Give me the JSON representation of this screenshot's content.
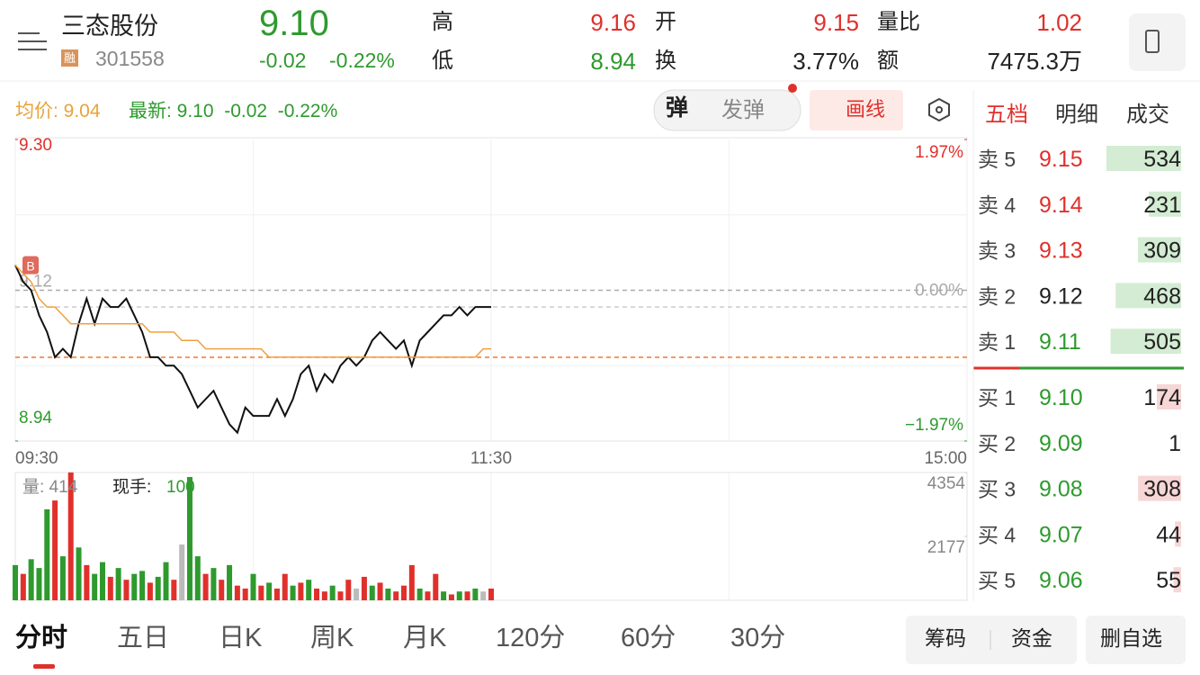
{
  "header": {
    "name": "三态股份",
    "margin_tag": "融",
    "code": "301558",
    "price": "9.10",
    "change": "-0.02",
    "change_pct": "-0.22%",
    "high_label": "高",
    "high": "9.16",
    "low_label": "低",
    "low": "8.94",
    "open_label": "开",
    "open": "9.15",
    "turnover_label": "换",
    "turnover": "3.77%",
    "ratio_label": "量比",
    "ratio": "1.02",
    "amount_label": "额",
    "amount": "7475.3万"
  },
  "legend": {
    "avg": "均价: 9.04",
    "latest": "最新: 9.10  -0.02  -0.22%"
  },
  "toolbar": {
    "danmu": "弹",
    "send_danmu": "发弹",
    "draw_line": "画线"
  },
  "chart_data": [
    {
      "type": "line",
      "annotation": "B",
      "x": [
        0,
        2,
        4,
        6,
        8,
        10,
        12,
        14,
        16,
        18,
        20,
        22,
        24,
        26,
        28,
        30,
        32,
        34,
        36,
        38,
        40,
        42,
        44,
        46,
        48,
        50,
        52,
        54,
        56,
        58,
        60,
        62,
        64,
        66,
        68,
        70,
        72,
        74,
        76,
        78,
        80,
        82,
        84,
        86,
        88,
        90,
        92,
        94,
        96,
        98,
        100,
        102,
        104,
        106,
        108,
        110,
        112,
        114,
        116,
        118,
        120
      ],
      "series": [
        {
          "name": "最新",
          "color": "#111111",
          "values": [
            9.15,
            9.13,
            9.12,
            9.09,
            9.07,
            9.04,
            9.05,
            9.04,
            9.08,
            9.11,
            9.08,
            9.11,
            9.1,
            9.1,
            9.11,
            9.09,
            9.07,
            9.04,
            9.04,
            9.03,
            9.03,
            9.02,
            9.0,
            8.98,
            8.99,
            9.0,
            8.98,
            8.96,
            8.95,
            8.98,
            8.97,
            8.97,
            8.97,
            8.99,
            8.97,
            8.99,
            9.02,
            9.03,
            9.0,
            9.02,
            9.01,
            9.03,
            9.04,
            9.03,
            9.04,
            9.06,
            9.07,
            9.06,
            9.05,
            9.06,
            9.03,
            9.06,
            9.07,
            9.08,
            9.09,
            9.09,
            9.1,
            9.09,
            9.1,
            9.1,
            9.1
          ]
        },
        {
          "name": "均价",
          "color": "#f0a040",
          "values": [
            9.15,
            9.14,
            9.13,
            9.11,
            9.1,
            9.1,
            9.09,
            9.08,
            9.08,
            9.08,
            9.08,
            9.08,
            9.08,
            9.08,
            9.08,
            9.08,
            9.08,
            9.07,
            9.07,
            9.07,
            9.07,
            9.06,
            9.06,
            9.06,
            9.05,
            9.05,
            9.05,
            9.05,
            9.05,
            9.05,
            9.05,
            9.05,
            9.04,
            9.04,
            9.04,
            9.04,
            9.04,
            9.04,
            9.04,
            9.04,
            9.04,
            9.04,
            9.04,
            9.04,
            9.04,
            9.04,
            9.04,
            9.04,
            9.04,
            9.04,
            9.04,
            9.04,
            9.04,
            9.04,
            9.04,
            9.04,
            9.04,
            9.04,
            9.04,
            9.05,
            9.05
          ]
        }
      ],
      "reference_lines": [
        {
          "value": 9.12,
          "color": "#aaaaaa"
        },
        {
          "value": 9.1,
          "color": "#cccccc"
        },
        {
          "value": 9.04,
          "color": "#f07a2a"
        }
      ],
      "xlim": [
        0,
        240
      ],
      "xticks": [
        {
          "value": 0,
          "label": "09:30"
        },
        {
          "value": 120,
          "label": "11:30"
        },
        {
          "value": 240,
          "label": "15:00"
        }
      ],
      "ylim": [
        8.94,
        9.3
      ],
      "yticks": [
        {
          "value": 9.3,
          "label": "9.30"
        },
        9.12,
        8.94
      ],
      "ytick_colors": [
        "#e0302c",
        "#aaaaaa",
        "#2e9a2e"
      ],
      "y2lim": [
        -1.97,
        1.97
      ],
      "y2ticks": [
        {
          "value": 1.97,
          "label": "1.97%"
        },
        {
          "value": 0,
          "label": "0.00%"
        },
        {
          "value": -1.97,
          "label": "−1.97%"
        }
      ],
      "y2tick_colors": [
        "#e0302c",
        "#aaaaaa",
        "#2e9a2e"
      ]
    },
    {
      "type": "bar",
      "volume_label": "量: 414",
      "hand_label": "现手:",
      "hand_value": "100",
      "x": [
        0,
        2,
        4,
        6,
        8,
        10,
        12,
        14,
        16,
        18,
        20,
        22,
        24,
        26,
        28,
        30,
        32,
        34,
        36,
        38,
        40,
        42,
        44,
        46,
        48,
        50,
        52,
        54,
        56,
        58,
        60,
        62,
        64,
        66,
        68,
        70,
        72,
        74,
        76,
        78,
        80,
        82,
        84,
        86,
        88,
        90,
        92,
        94,
        96,
        98,
        100,
        102,
        104,
        106,
        108,
        110,
        112,
        114,
        116,
        118,
        120
      ],
      "values": [
        1200,
        900,
        1400,
        1100,
        3100,
        3400,
        1500,
        4354,
        1800,
        1200,
        900,
        1300,
        800,
        1100,
        700,
        900,
        1000,
        600,
        800,
        1300,
        700,
        1900,
        4200,
        1500,
        900,
        1100,
        700,
        1200,
        500,
        400,
        900,
        500,
        600,
        400,
        900,
        500,
        600,
        700,
        400,
        300,
        500,
        300,
        700,
        400,
        800,
        500,
        600,
        400,
        300,
        500,
        1200,
        400,
        300,
        900,
        300,
        200,
        300,
        300,
        400,
        300,
        400
      ],
      "bar_colors": [
        "#2e9a2e",
        "#e0302c",
        "#2e9a2e",
        "#2e9a2e",
        "#2e9a2e",
        "#e0302c",
        "#2e9a2e",
        "#e0302c",
        "#2e9a2e",
        "#e0302c",
        "#2e9a2e",
        "#2e9a2e",
        "#e0302c",
        "#2e9a2e",
        "#e0302c",
        "#2e9a2e",
        "#2e9a2e",
        "#e0302c",
        "#2e9a2e",
        "#2e9a2e",
        "#e0302c",
        "#bbbbbb",
        "#2e9a2e",
        "#2e9a2e",
        "#e0302c",
        "#2e9a2e",
        "#e0302c",
        "#2e9a2e",
        "#e0302c",
        "#e0302c",
        "#2e9a2e",
        "#e0302c",
        "#2e9a2e",
        "#e0302c",
        "#e0302c",
        "#2e9a2e",
        "#e0302c",
        "#2e9a2e",
        "#e0302c",
        "#e0302c",
        "#2e9a2e",
        "#e0302c",
        "#e0302c",
        "#bbbbbb",
        "#e0302c",
        "#2e9a2e",
        "#e0302c",
        "#2e9a2e",
        "#e0302c",
        "#e0302c",
        "#e0302c",
        "#2e9a2e",
        "#e0302c",
        "#e0302c",
        "#2e9a2e",
        "#e0302c",
        "#2e9a2e",
        "#e0302c",
        "#2e9a2e",
        "#bbbbbb",
        "#e0302c"
      ],
      "xlim": [
        0,
        240
      ],
      "ylim": [
        0,
        4354
      ],
      "yticks": [
        4354,
        2177
      ]
    }
  ],
  "order_book": {
    "tabs": [
      "五档",
      "明细",
      "成交"
    ],
    "sell": [
      {
        "label": "卖 5",
        "price": "9.15",
        "color": "#e0302c",
        "volume": 534
      },
      {
        "label": "卖 4",
        "price": "9.14",
        "color": "#e0302c",
        "volume": 231
      },
      {
        "label": "卖 3",
        "price": "9.13",
        "color": "#e0302c",
        "volume": 309
      },
      {
        "label": "卖 2",
        "price": "9.12",
        "color": "#222222",
        "volume": 468
      },
      {
        "label": "卖 1",
        "price": "9.11",
        "color": "#2e9a2e",
        "volume": 505
      }
    ],
    "buy": [
      {
        "label": "买 1",
        "price": "9.10",
        "color": "#2e9a2e",
        "volume": 174
      },
      {
        "label": "买 2",
        "price": "9.09",
        "color": "#2e9a2e",
        "volume": 1
      },
      {
        "label": "买 3",
        "price": "9.08",
        "color": "#2e9a2e",
        "volume": 308
      },
      {
        "label": "买 4",
        "price": "9.07",
        "color": "#2e9a2e",
        "volume": 44
      },
      {
        "label": "买 5",
        "price": "9.06",
        "color": "#2e9a2e",
        "volume": 55
      }
    ]
  },
  "bottom_tabs": [
    "分时",
    "五日",
    "日K",
    "周K",
    "月K",
    "120分",
    "60分",
    "30分"
  ],
  "bottom_buttons": {
    "chips": "筹码",
    "funds": "资金",
    "remove": "删自选"
  }
}
